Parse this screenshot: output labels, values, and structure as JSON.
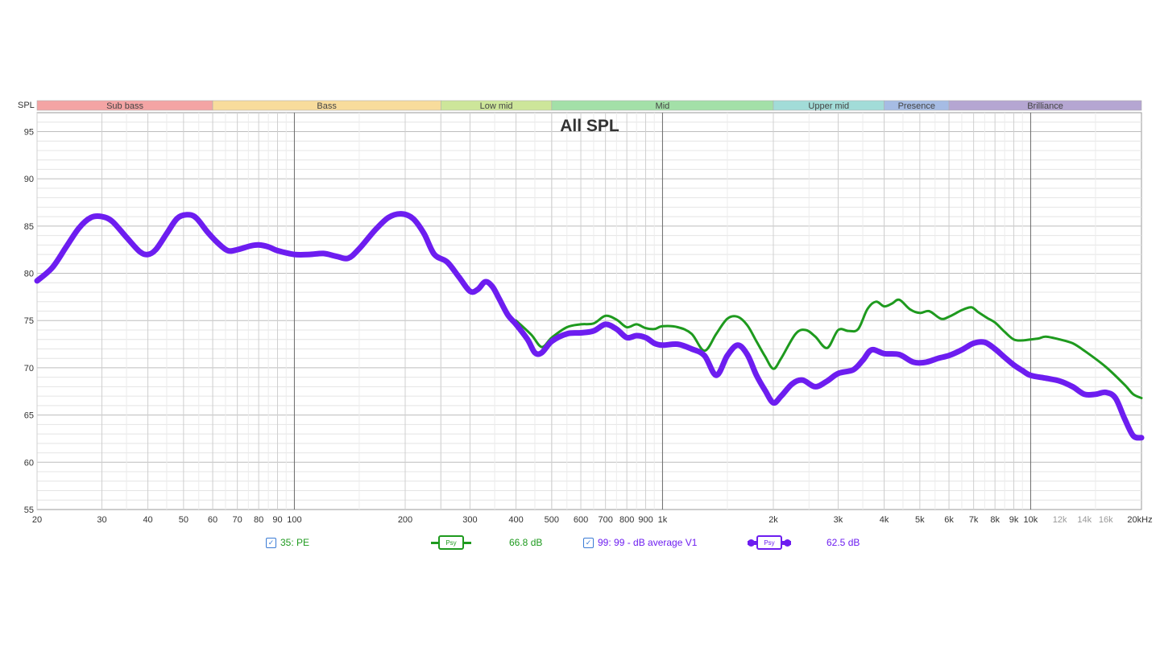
{
  "chart_data": {
    "type": "line",
    "title": "All SPL",
    "ylabel": "SPL",
    "xlabel": "",
    "x_scale": "log",
    "xlim": [
      20,
      20000
    ],
    "ylim": [
      55,
      97
    ],
    "grid": true,
    "y_ticks": [
      55,
      60,
      65,
      70,
      75,
      80,
      85,
      90,
      95
    ],
    "x_ticks": [
      {
        "v": 20,
        "label": "20",
        "style": "major"
      },
      {
        "v": 30,
        "label": "30",
        "style": "normal"
      },
      {
        "v": 40,
        "label": "40",
        "style": "normal"
      },
      {
        "v": 50,
        "label": "50",
        "style": "normal"
      },
      {
        "v": 60,
        "label": "60",
        "style": "normal"
      },
      {
        "v": 70,
        "label": "70",
        "style": "normal"
      },
      {
        "v": 80,
        "label": "80",
        "style": "normal"
      },
      {
        "v": 90,
        "label": "90",
        "style": "normal"
      },
      {
        "v": 100,
        "label": "100",
        "style": "normal"
      },
      {
        "v": 200,
        "label": "200",
        "style": "normal"
      },
      {
        "v": 300,
        "label": "300",
        "style": "normal"
      },
      {
        "v": 400,
        "label": "400",
        "style": "normal"
      },
      {
        "v": 500,
        "label": "500",
        "style": "normal"
      },
      {
        "v": 600,
        "label": "600",
        "style": "normal"
      },
      {
        "v": 700,
        "label": "700",
        "style": "normal"
      },
      {
        "v": 800,
        "label": "800",
        "style": "normal"
      },
      {
        "v": 900,
        "label": "900",
        "style": "normal"
      },
      {
        "v": 1000,
        "label": "1k",
        "style": "normal"
      },
      {
        "v": 2000,
        "label": "2k",
        "style": "normal"
      },
      {
        "v": 3000,
        "label": "3k",
        "style": "normal"
      },
      {
        "v": 4000,
        "label": "4k",
        "style": "normal"
      },
      {
        "v": 5000,
        "label": "5k",
        "style": "normal"
      },
      {
        "v": 6000,
        "label": "6k",
        "style": "normal"
      },
      {
        "v": 7000,
        "label": "7k",
        "style": "normal"
      },
      {
        "v": 8000,
        "label": "8k",
        "style": "normal"
      },
      {
        "v": 9000,
        "label": "9k",
        "style": "normal"
      },
      {
        "v": 10000,
        "label": "10k",
        "style": "normal"
      },
      {
        "v": 12000,
        "label": "12k",
        "style": "faint"
      },
      {
        "v": 14000,
        "label": "14k",
        "style": "faint"
      },
      {
        "v": 16000,
        "label": "16k",
        "style": "faint"
      },
      {
        "v": 20000,
        "label": "20kHz",
        "style": "normal"
      }
    ],
    "bands": [
      {
        "label": "Sub bass",
        "from": 20,
        "to": 60,
        "color": "#f4a4a4"
      },
      {
        "label": "Bass",
        "from": 60,
        "to": 250,
        "color": "#f8dc9c"
      },
      {
        "label": "Low mid",
        "from": 250,
        "to": 500,
        "color": "#cde69a"
      },
      {
        "label": "Mid",
        "from": 500,
        "to": 2000,
        "color": "#a3e0a8"
      },
      {
        "label": "Upper mid",
        "from": 2000,
        "to": 4000,
        "color": "#a2dcd8"
      },
      {
        "label": "Presence",
        "from": 4000,
        "to": 6000,
        "color": "#a6bce4"
      },
      {
        "label": "Brilliance",
        "from": 6000,
        "to": 20000,
        "color": "#b5a6d2"
      }
    ],
    "series": [
      {
        "name": "35: PE",
        "color": "#1e9a1e",
        "value_text": "66.8 dB",
        "points": [
          [
            400,
            75
          ],
          [
            440,
            73.5
          ],
          [
            470,
            72.2
          ],
          [
            500,
            73.2
          ],
          [
            550,
            74.3
          ],
          [
            600,
            74.6
          ],
          [
            650,
            74.7
          ],
          [
            700,
            75.5
          ],
          [
            750,
            75.1
          ],
          [
            800,
            74.3
          ],
          [
            850,
            74.6
          ],
          [
            900,
            74.2
          ],
          [
            950,
            74.1
          ],
          [
            1000,
            74.4
          ],
          [
            1100,
            74.3
          ],
          [
            1200,
            73.6
          ],
          [
            1300,
            71.8
          ],
          [
            1400,
            73.6
          ],
          [
            1500,
            75.2
          ],
          [
            1600,
            75.4
          ],
          [
            1700,
            74.5
          ],
          [
            1800,
            72.8
          ],
          [
            1900,
            71.2
          ],
          [
            2000,
            69.9
          ],
          [
            2100,
            71
          ],
          [
            2300,
            73.6
          ],
          [
            2450,
            74
          ],
          [
            2600,
            73.3
          ],
          [
            2800,
            72.1
          ],
          [
            3000,
            74
          ],
          [
            3200,
            73.9
          ],
          [
            3400,
            74.1
          ],
          [
            3600,
            76.2
          ],
          [
            3800,
            77
          ],
          [
            4000,
            76.5
          ],
          [
            4200,
            76.8
          ],
          [
            4400,
            77.2
          ],
          [
            4700,
            76.2
          ],
          [
            5000,
            75.8
          ],
          [
            5300,
            76
          ],
          [
            5700,
            75.2
          ],
          [
            6000,
            75.4
          ],
          [
            6500,
            76.1
          ],
          [
            6900,
            76.4
          ],
          [
            7200,
            75.9
          ],
          [
            7600,
            75.3
          ],
          [
            8000,
            74.8
          ],
          [
            8500,
            73.8
          ],
          [
            9000,
            73
          ],
          [
            9500,
            72.9
          ],
          [
            10000,
            73
          ],
          [
            10500,
            73.1
          ],
          [
            11000,
            73.3
          ],
          [
            12000,
            73
          ],
          [
            13000,
            72.6
          ],
          [
            14000,
            71.8
          ],
          [
            16000,
            70.1
          ],
          [
            18000,
            68.2
          ],
          [
            19000,
            67.2
          ],
          [
            20000,
            66.8
          ]
        ]
      },
      {
        "name": "99: 99 - dB average V1",
        "color": "#6d1df0",
        "value_text": "62.5 dB",
        "points": [
          [
            20,
            79.2
          ],
          [
            22,
            80.6
          ],
          [
            24,
            82.8
          ],
          [
            26,
            84.8
          ],
          [
            28,
            85.9
          ],
          [
            30,
            86
          ],
          [
            32,
            85.5
          ],
          [
            35,
            83.8
          ],
          [
            38,
            82.3
          ],
          [
            40,
            82
          ],
          [
            42,
            82.5
          ],
          [
            45,
            84.2
          ],
          [
            48,
            85.8
          ],
          [
            51,
            86.2
          ],
          [
            54,
            85.9
          ],
          [
            58,
            84.4
          ],
          [
            62,
            83.2
          ],
          [
            66,
            82.4
          ],
          [
            70,
            82.5
          ],
          [
            76,
            82.9
          ],
          [
            80,
            83
          ],
          [
            85,
            82.8
          ],
          [
            90,
            82.4
          ],
          [
            100,
            82
          ],
          [
            110,
            82
          ],
          [
            120,
            82.1
          ],
          [
            130,
            81.8
          ],
          [
            140,
            81.6
          ],
          [
            150,
            82.6
          ],
          [
            165,
            84.5
          ],
          [
            180,
            85.9
          ],
          [
            195,
            86.3
          ],
          [
            210,
            85.8
          ],
          [
            225,
            84.2
          ],
          [
            240,
            82
          ],
          [
            260,
            81.2
          ],
          [
            280,
            79.6
          ],
          [
            300,
            78.1
          ],
          [
            315,
            78.3
          ],
          [
            330,
            79.1
          ],
          [
            345,
            78.6
          ],
          [
            360,
            77.3
          ],
          [
            380,
            75.6
          ],
          [
            400,
            74.6
          ],
          [
            430,
            73
          ],
          [
            450,
            71.6
          ],
          [
            470,
            71.6
          ],
          [
            500,
            72.8
          ],
          [
            550,
            73.6
          ],
          [
            600,
            73.7
          ],
          [
            650,
            73.9
          ],
          [
            700,
            74.6
          ],
          [
            750,
            74.1
          ],
          [
            800,
            73.2
          ],
          [
            850,
            73.4
          ],
          [
            900,
            73.2
          ],
          [
            950,
            72.6
          ],
          [
            1000,
            72.4
          ],
          [
            1100,
            72.5
          ],
          [
            1200,
            72
          ],
          [
            1300,
            71.3
          ],
          [
            1400,
            69.2
          ],
          [
            1500,
            71.3
          ],
          [
            1600,
            72.4
          ],
          [
            1700,
            71.4
          ],
          [
            1800,
            69.2
          ],
          [
            1900,
            67.6
          ],
          [
            2000,
            66.3
          ],
          [
            2100,
            67
          ],
          [
            2250,
            68.3
          ],
          [
            2400,
            68.7
          ],
          [
            2600,
            68
          ],
          [
            2800,
            68.6
          ],
          [
            3000,
            69.4
          ],
          [
            3300,
            69.8
          ],
          [
            3500,
            70.8
          ],
          [
            3700,
            71.9
          ],
          [
            4000,
            71.5
          ],
          [
            4400,
            71.4
          ],
          [
            4800,
            70.6
          ],
          [
            5200,
            70.6
          ],
          [
            5600,
            71
          ],
          [
            6000,
            71.3
          ],
          [
            6500,
            71.9
          ],
          [
            7000,
            72.6
          ],
          [
            7500,
            72.7
          ],
          [
            8000,
            72
          ],
          [
            8500,
            71.1
          ],
          [
            9000,
            70.3
          ],
          [
            9500,
            69.7
          ],
          [
            10000,
            69.2
          ],
          [
            11000,
            68.9
          ],
          [
            12000,
            68.6
          ],
          [
            13000,
            68
          ],
          [
            14000,
            67.2
          ],
          [
            15000,
            67.2
          ],
          [
            16000,
            67.4
          ],
          [
            17000,
            66.8
          ],
          [
            18000,
            64.6
          ],
          [
            19000,
            62.8
          ],
          [
            20000,
            62.6
          ]
        ]
      }
    ]
  },
  "legend": {
    "items": [
      {
        "label": "35: PE",
        "value": "66.8 dB",
        "swatch_text": "Psy",
        "color": "#1e9a1e",
        "checked": true
      },
      {
        "label": "99: 99 - dB average V1",
        "value": "62.5 dB",
        "swatch_text": "Psy",
        "color": "#6d1df0",
        "checked": true
      }
    ]
  }
}
